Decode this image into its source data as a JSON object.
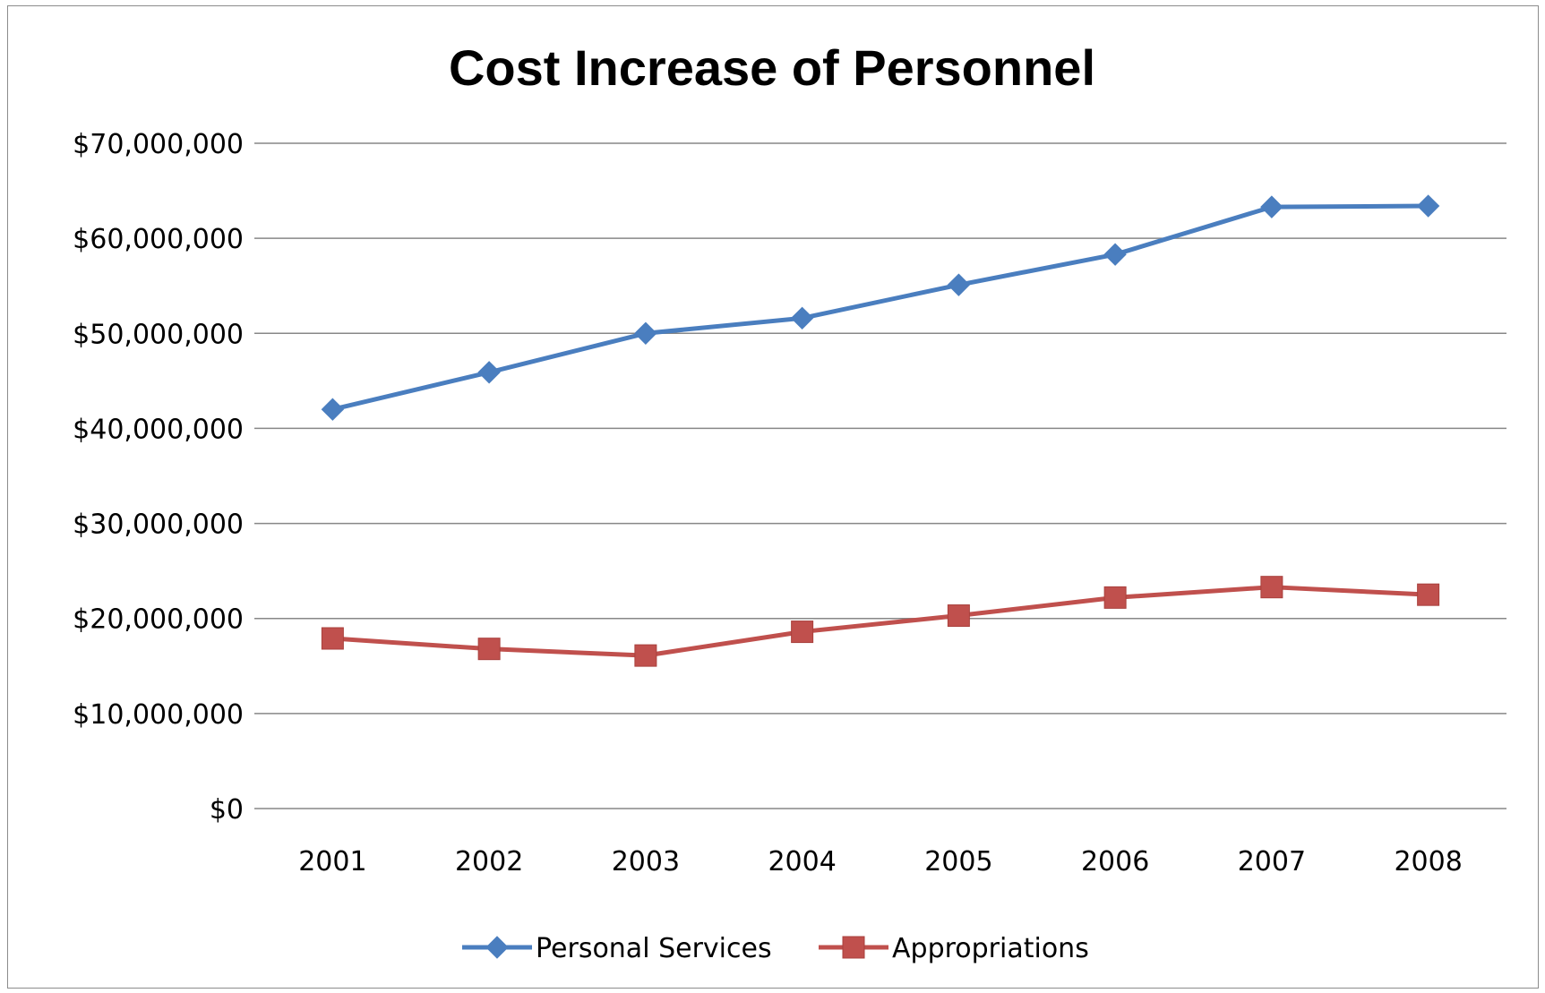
{
  "chart_data": {
    "type": "line",
    "title": "Cost Increase of Personnel",
    "xlabel": "",
    "ylabel": "",
    "categories": [
      "2001",
      "2002",
      "2003",
      "2004",
      "2005",
      "2006",
      "2007",
      "2008"
    ],
    "y_tick_labels": [
      "$0",
      "$10,000,000",
      "$20,000,000",
      "$30,000,000",
      "$40,000,000",
      "$50,000,000",
      "$60,000,000",
      "$70,000,000"
    ],
    "ylim": [
      0,
      70000000
    ],
    "grid": true,
    "legend_position": "bottom",
    "series": [
      {
        "name": "Personal Services",
        "color": "#4a7ebf",
        "marker": "diamond",
        "values": [
          42000000,
          45900000,
          50000000,
          51600000,
          55100000,
          58300000,
          63300000,
          63400000
        ]
      },
      {
        "name": "Appropriations",
        "color": "#c0504d",
        "marker": "square",
        "values": [
          17900000,
          16800000,
          16100000,
          18600000,
          20300000,
          22200000,
          23300000,
          22500000
        ]
      }
    ]
  }
}
